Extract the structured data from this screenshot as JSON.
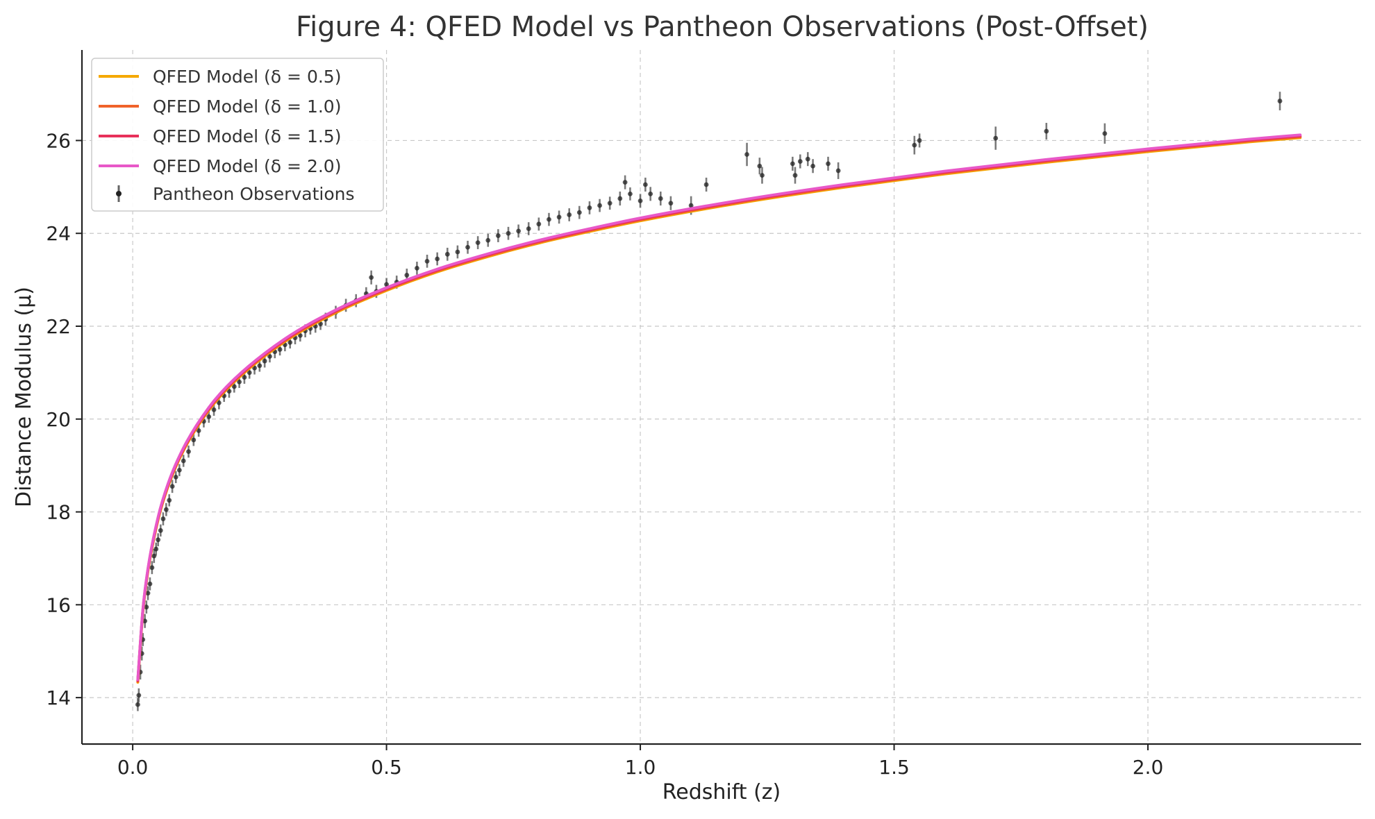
{
  "chart_data": {
    "type": "line",
    "title": "Figure 4: QFED Model vs Pantheon Observations (Post-Offset)",
    "xlabel": "Redshift (z)",
    "ylabel": "Distance Modulus (μ)",
    "xlim": [
      -0.1,
      2.42
    ],
    "ylim": [
      13.0,
      27.95
    ],
    "x_ticks": [
      0.0,
      0.5,
      1.0,
      1.5,
      2.0
    ],
    "x_tick_labels": [
      "0.0",
      "0.5",
      "1.0",
      "1.5",
      "2.0"
    ],
    "y_ticks": [
      14,
      16,
      18,
      20,
      22,
      24,
      26
    ],
    "y_tick_labels": [
      "14",
      "16",
      "18",
      "20",
      "22",
      "24",
      "26"
    ],
    "grid": true,
    "legend_position": "top-left",
    "model_x": [
      0.01,
      0.02,
      0.03,
      0.05,
      0.07,
      0.1,
      0.15,
      0.2,
      0.3,
      0.4,
      0.5,
      0.6,
      0.7,
      0.8,
      0.9,
      1.0,
      1.2,
      1.4,
      1.6,
      1.8,
      2.0,
      2.2,
      2.3
    ],
    "series": [
      {
        "name": "QFED Model (δ = 0.5)",
        "color": "#f5a800",
        "y": [
          14.33,
          15.84,
          16.72,
          17.83,
          18.56,
          19.32,
          20.19,
          20.8,
          21.67,
          22.29,
          22.77,
          23.17,
          23.5,
          23.79,
          24.04,
          24.27,
          24.66,
          24.99,
          25.28,
          25.53,
          25.76,
          25.97,
          26.06
        ]
      },
      {
        "name": "QFED Model (δ = 1.0)",
        "color": "#f0632a",
        "y": [
          14.35,
          15.86,
          16.74,
          17.85,
          18.58,
          19.34,
          20.21,
          20.82,
          21.69,
          22.31,
          22.79,
          23.19,
          23.52,
          23.81,
          24.06,
          24.29,
          24.68,
          25.01,
          25.3,
          25.55,
          25.78,
          25.99,
          26.08
        ]
      },
      {
        "name": "QFED Model (δ = 1.5)",
        "color": "#e8305a",
        "y": [
          14.37,
          15.88,
          16.76,
          17.87,
          18.6,
          19.36,
          20.23,
          20.84,
          21.71,
          22.33,
          22.81,
          23.21,
          23.54,
          23.83,
          24.08,
          24.31,
          24.7,
          25.03,
          25.32,
          25.57,
          25.8,
          26.01,
          26.1
        ]
      },
      {
        "name": "QFED Model (δ = 2.0)",
        "color": "#e858c8",
        "y": [
          14.39,
          15.9,
          16.78,
          17.89,
          18.62,
          19.38,
          20.25,
          20.86,
          21.73,
          22.35,
          22.83,
          23.23,
          23.56,
          23.85,
          24.1,
          24.33,
          24.72,
          25.05,
          25.34,
          25.59,
          25.82,
          26.03,
          26.12
        ]
      }
    ],
    "observations": {
      "name": "Pantheon Observations",
      "color": "#222222",
      "points": [
        [
          0.01,
          13.85,
          0.14
        ],
        [
          0.012,
          14.05,
          0.15
        ],
        [
          0.015,
          14.55,
          0.16
        ],
        [
          0.018,
          14.95,
          0.15
        ],
        [
          0.02,
          15.25,
          0.14
        ],
        [
          0.024,
          15.65,
          0.15
        ],
        [
          0.027,
          15.95,
          0.14
        ],
        [
          0.03,
          16.25,
          0.15
        ],
        [
          0.034,
          16.45,
          0.14
        ],
        [
          0.038,
          16.8,
          0.14
        ],
        [
          0.042,
          17.05,
          0.15
        ],
        [
          0.046,
          17.2,
          0.14
        ],
        [
          0.05,
          17.4,
          0.14
        ],
        [
          0.055,
          17.6,
          0.13
        ],
        [
          0.06,
          17.85,
          0.14
        ],
        [
          0.066,
          18.05,
          0.14
        ],
        [
          0.072,
          18.25,
          0.13
        ],
        [
          0.078,
          18.55,
          0.14
        ],
        [
          0.085,
          18.75,
          0.13
        ],
        [
          0.092,
          18.9,
          0.13
        ],
        [
          0.1,
          19.1,
          0.13
        ],
        [
          0.11,
          19.3,
          0.13
        ],
        [
          0.12,
          19.55,
          0.13
        ],
        [
          0.13,
          19.75,
          0.13
        ],
        [
          0.14,
          19.95,
          0.13
        ],
        [
          0.15,
          20.05,
          0.13
        ],
        [
          0.16,
          20.2,
          0.13
        ],
        [
          0.17,
          20.35,
          0.14
        ],
        [
          0.18,
          20.5,
          0.13
        ],
        [
          0.19,
          20.6,
          0.14
        ],
        [
          0.2,
          20.7,
          0.13
        ],
        [
          0.21,
          20.8,
          0.13
        ],
        [
          0.22,
          20.9,
          0.14
        ],
        [
          0.23,
          21.0,
          0.13
        ],
        [
          0.24,
          21.1,
          0.14
        ],
        [
          0.25,
          21.15,
          0.13
        ],
        [
          0.26,
          21.25,
          0.14
        ],
        [
          0.27,
          21.35,
          0.13
        ],
        [
          0.28,
          21.45,
          0.14
        ],
        [
          0.29,
          21.5,
          0.13
        ],
        [
          0.3,
          21.6,
          0.14
        ],
        [
          0.31,
          21.65,
          0.13
        ],
        [
          0.32,
          21.75,
          0.14
        ],
        [
          0.33,
          21.8,
          0.13
        ],
        [
          0.34,
          21.9,
          0.14
        ],
        [
          0.35,
          21.95,
          0.13
        ],
        [
          0.36,
          22.0,
          0.14
        ],
        [
          0.37,
          22.05,
          0.13
        ],
        [
          0.38,
          22.15,
          0.14
        ],
        [
          0.4,
          22.3,
          0.14
        ],
        [
          0.42,
          22.45,
          0.14
        ],
        [
          0.44,
          22.55,
          0.14
        ],
        [
          0.46,
          22.7,
          0.14
        ],
        [
          0.47,
          23.05,
          0.15
        ],
        [
          0.48,
          22.75,
          0.14
        ],
        [
          0.5,
          22.9,
          0.14
        ],
        [
          0.52,
          22.95,
          0.14
        ],
        [
          0.54,
          23.1,
          0.14
        ],
        [
          0.56,
          23.25,
          0.14
        ],
        [
          0.58,
          23.4,
          0.14
        ],
        [
          0.6,
          23.45,
          0.14
        ],
        [
          0.62,
          23.55,
          0.14
        ],
        [
          0.64,
          23.6,
          0.14
        ],
        [
          0.66,
          23.7,
          0.14
        ],
        [
          0.68,
          23.8,
          0.14
        ],
        [
          0.7,
          23.85,
          0.14
        ],
        [
          0.72,
          23.95,
          0.14
        ],
        [
          0.74,
          24.0,
          0.14
        ],
        [
          0.76,
          24.05,
          0.14
        ],
        [
          0.78,
          24.1,
          0.14
        ],
        [
          0.8,
          24.2,
          0.14
        ],
        [
          0.82,
          24.3,
          0.14
        ],
        [
          0.84,
          24.35,
          0.14
        ],
        [
          0.86,
          24.4,
          0.14
        ],
        [
          0.88,
          24.45,
          0.14
        ],
        [
          0.9,
          24.55,
          0.14
        ],
        [
          0.92,
          24.6,
          0.14
        ],
        [
          0.94,
          24.65,
          0.14
        ],
        [
          0.96,
          24.75,
          0.15
        ],
        [
          0.97,
          25.1,
          0.15
        ],
        [
          0.98,
          24.85,
          0.14
        ],
        [
          1.0,
          24.7,
          0.15
        ],
        [
          1.01,
          25.05,
          0.15
        ],
        [
          1.02,
          24.85,
          0.15
        ],
        [
          1.04,
          24.75,
          0.15
        ],
        [
          1.06,
          24.65,
          0.15
        ],
        [
          1.1,
          24.6,
          0.2
        ],
        [
          1.13,
          25.05,
          0.15
        ],
        [
          1.21,
          25.7,
          0.25
        ],
        [
          1.235,
          25.45,
          0.18
        ],
        [
          1.24,
          25.25,
          0.18
        ],
        [
          1.3,
          25.5,
          0.15
        ],
        [
          1.305,
          25.25,
          0.18
        ],
        [
          1.315,
          25.55,
          0.15
        ],
        [
          1.33,
          25.6,
          0.15
        ],
        [
          1.34,
          25.45,
          0.15
        ],
        [
          1.37,
          25.5,
          0.15
        ],
        [
          1.39,
          25.35,
          0.18
        ],
        [
          1.54,
          25.9,
          0.2
        ],
        [
          1.55,
          26.0,
          0.15
        ],
        [
          1.7,
          26.05,
          0.25
        ],
        [
          1.8,
          26.2,
          0.18
        ],
        [
          1.915,
          26.15,
          0.22
        ],
        [
          2.26,
          26.85,
          0.2
        ]
      ]
    }
  }
}
